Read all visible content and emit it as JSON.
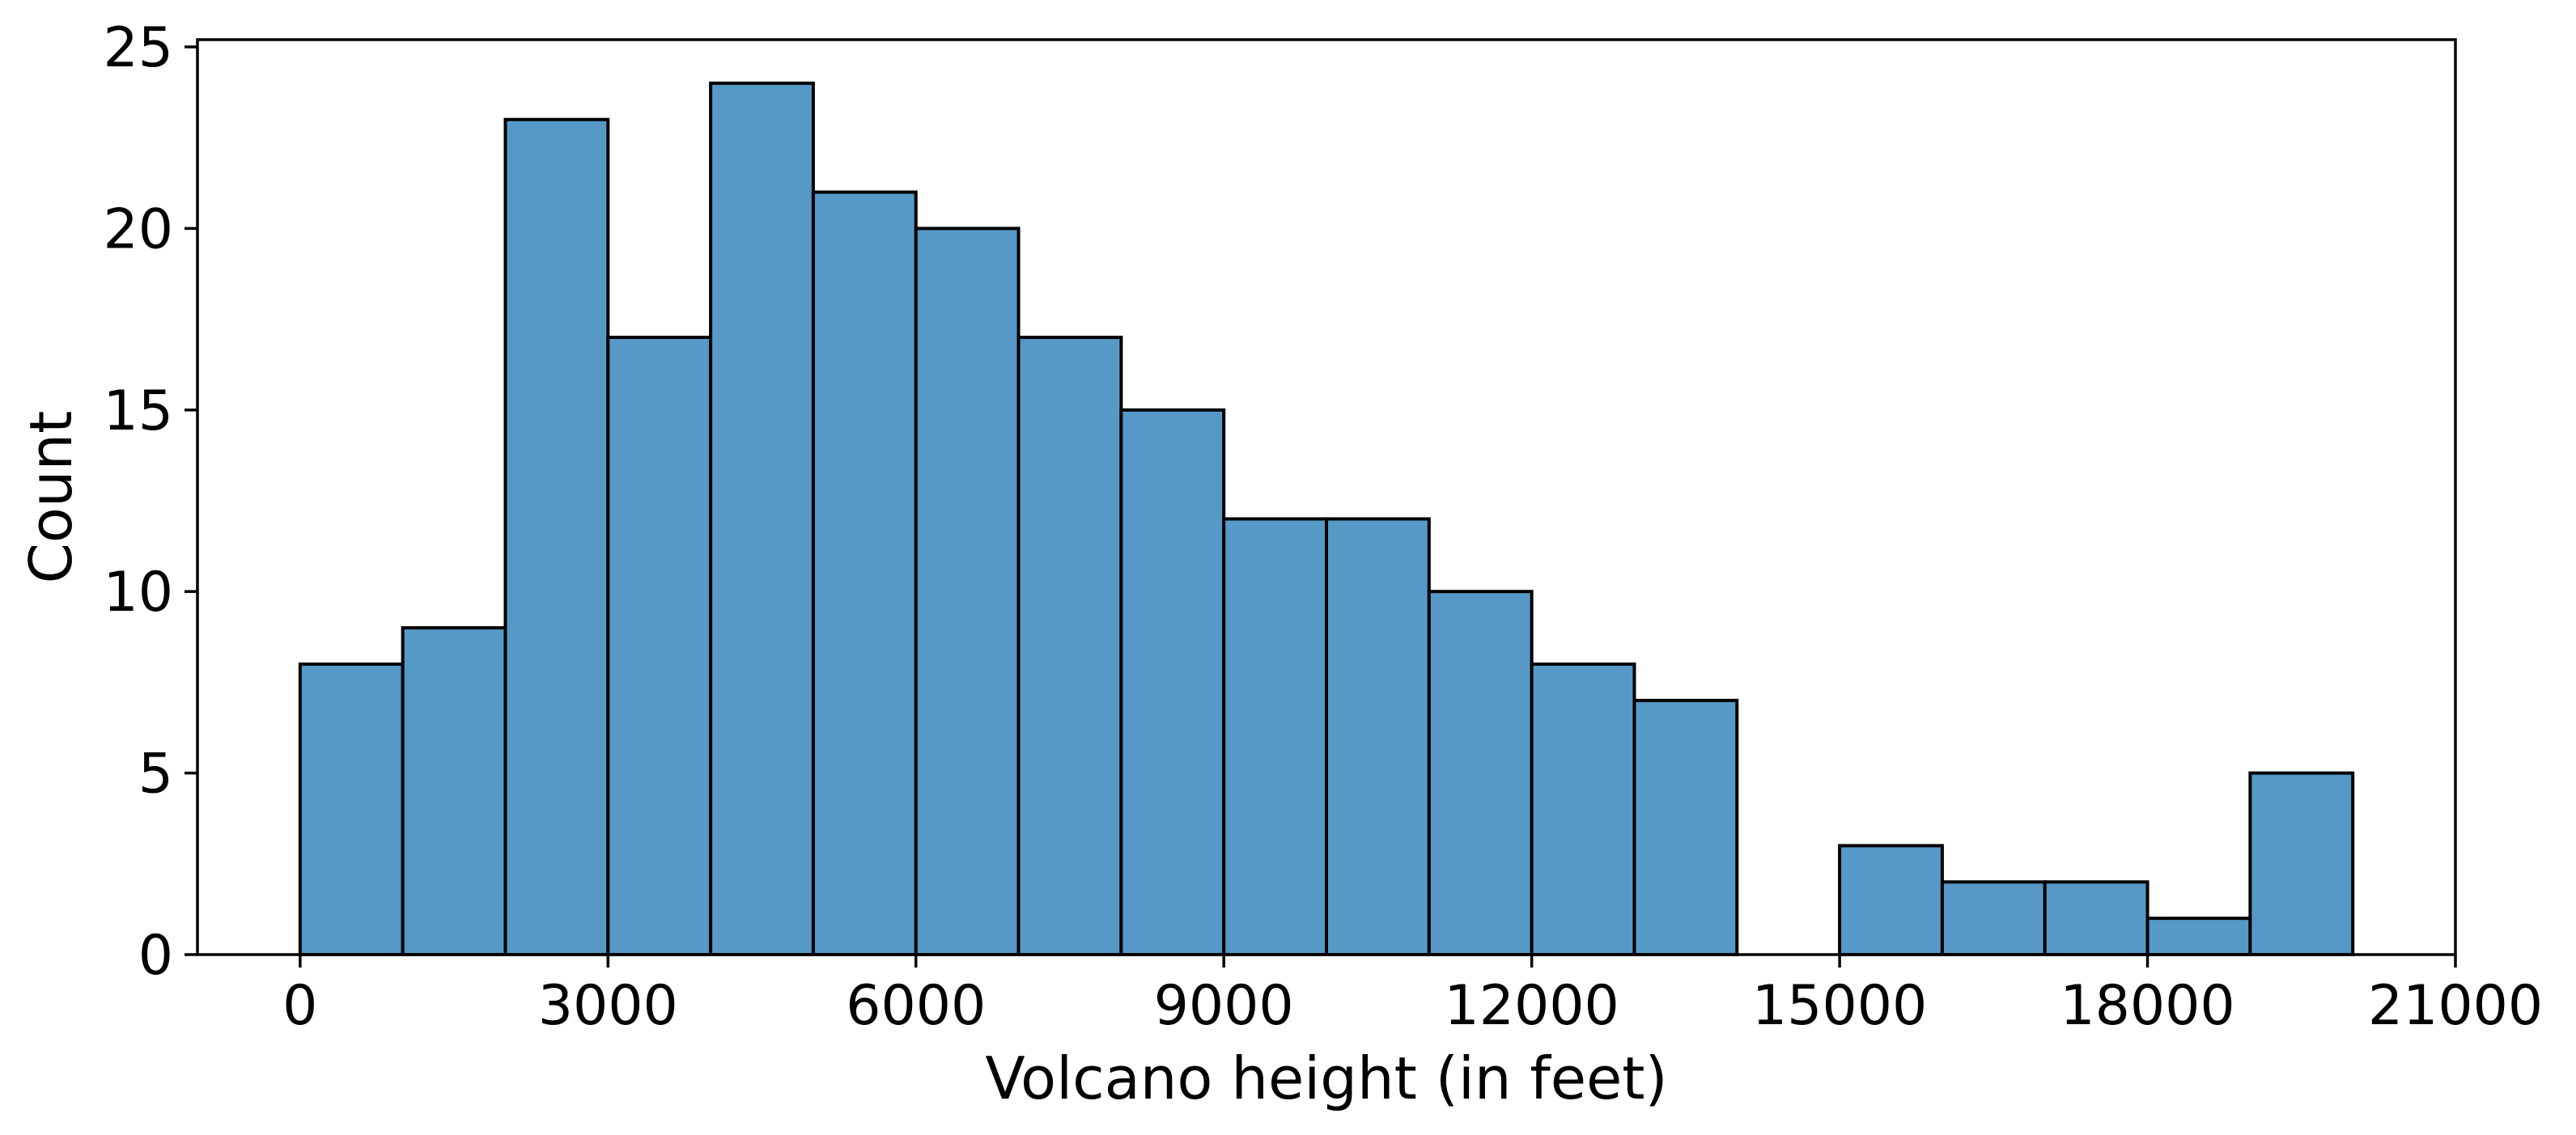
{
  "chart_data": {
    "type": "bar",
    "subtype": "histogram",
    "xlabel": "Volcano height (in feet)",
    "ylabel": "Count",
    "xlim": [
      -1000,
      21000
    ],
    "ylim": [
      0,
      25.2
    ],
    "xticks": [
      0,
      3000,
      6000,
      9000,
      12000,
      15000,
      18000,
      21000
    ],
    "yticks": [
      0,
      5,
      10,
      15,
      20,
      25
    ],
    "xtick_labels": [
      "0",
      "3000",
      "6000",
      "9000",
      "12000",
      "15000",
      "18000",
      "21000"
    ],
    "ytick_labels": [
      "0",
      "5",
      "10",
      "15",
      "20",
      "25"
    ],
    "bin_width": 1000,
    "bins": [
      {
        "x0": 0,
        "x1": 1000,
        "count": 8
      },
      {
        "x0": 1000,
        "x1": 2000,
        "count": 9
      },
      {
        "x0": 2000,
        "x1": 3000,
        "count": 23
      },
      {
        "x0": 3000,
        "x1": 4000,
        "count": 17
      },
      {
        "x0": 4000,
        "x1": 5000,
        "count": 24
      },
      {
        "x0": 5000,
        "x1": 6000,
        "count": 21
      },
      {
        "x0": 6000,
        "x1": 7000,
        "count": 20
      },
      {
        "x0": 7000,
        "x1": 8000,
        "count": 17
      },
      {
        "x0": 8000,
        "x1": 9000,
        "count": 15
      },
      {
        "x0": 9000,
        "x1": 10000,
        "count": 12
      },
      {
        "x0": 10000,
        "x1": 11000,
        "count": 12
      },
      {
        "x0": 11000,
        "x1": 12000,
        "count": 10
      },
      {
        "x0": 12000,
        "x1": 13000,
        "count": 8
      },
      {
        "x0": 13000,
        "x1": 14000,
        "count": 7
      },
      {
        "x0": 14000,
        "x1": 15000,
        "count": 0
      },
      {
        "x0": 15000,
        "x1": 16000,
        "count": 3
      },
      {
        "x0": 16000,
        "x1": 17000,
        "count": 2
      },
      {
        "x0": 17000,
        "x1": 18000,
        "count": 2
      },
      {
        "x0": 18000,
        "x1": 19000,
        "count": 1
      },
      {
        "x0": 19000,
        "x1": 20000,
        "count": 5
      }
    ],
    "bar_color": "#5699c6",
    "edge_color": "#000000",
    "grid": false,
    "legend": false
  }
}
